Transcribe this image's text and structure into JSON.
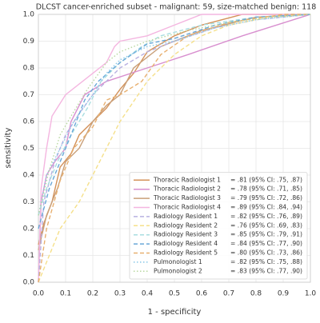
{
  "chart_data": {
    "type": "line",
    "title": "DLCST cancer-enriched subset - malignant: 59, size-matched benign: 118",
    "x_label": "1 - specificity",
    "y_label": "sensitivity",
    "xlim": [
      0,
      1
    ],
    "ylim": [
      0,
      1
    ],
    "xticks": [
      {
        "value": 0,
        "label": "0.0"
      },
      0.1,
      0.2,
      0.3,
      0.4,
      0.5,
      0.6,
      0.7,
      0.8,
      0.9,
      {
        "value": 1,
        "label": "1.0"
      }
    ],
    "yticks": [
      {
        "value": 0,
        "label": "0.0"
      },
      0.1,
      0.2,
      0.3,
      0.4,
      0.5,
      0.6,
      0.7,
      0.8,
      0.9,
      {
        "value": 1,
        "label": "1.0"
      }
    ],
    "grid": true,
    "legend": "lower right",
    "series": [
      {
        "name": "Thoracic Radiologist 1",
        "auc_label": "= .81 (95% CI: .75, .87)",
        "color": "#d4925a",
        "linestyle": "solid",
        "x": [
          0,
          0.02,
          0.05,
          0.08,
          0.12,
          0.15,
          0.2,
          0.25,
          0.3,
          0.35,
          0.4,
          0.5,
          0.6,
          0.75,
          1
        ],
        "values": [
          0.14,
          0.22,
          0.3,
          0.43,
          0.48,
          0.55,
          0.6,
          0.65,
          0.72,
          0.78,
          0.86,
          0.92,
          0.96,
          1,
          1
        ]
      },
      {
        "name": "Thoracic Radiologist 2",
        "auc_label": "= .78 (95% CI: .71, .85)",
        "color": "#d88fcf",
        "linestyle": "solid",
        "x": [
          0,
          0.01,
          0.03,
          0.06,
          0.1,
          0.12,
          0.17,
          0.25,
          0.4,
          0.55,
          0.75,
          1
        ],
        "values": [
          0,
          0.3,
          0.4,
          0.45,
          0.5,
          0.6,
          0.7,
          0.75,
          0.8,
          0.85,
          0.92,
          1
        ]
      },
      {
        "name": "Thoracic Radiologist 3",
        "auc_label": "= .79 (95% CI: .72, .86)",
        "color": "#c9a07a",
        "linestyle": "solid",
        "x": [
          0,
          0.03,
          0.07,
          0.1,
          0.15,
          0.2,
          0.25,
          0.3,
          0.35,
          0.45,
          0.6,
          0.8,
          1
        ],
        "values": [
          0.12,
          0.25,
          0.35,
          0.45,
          0.5,
          0.6,
          0.66,
          0.7,
          0.8,
          0.88,
          0.94,
          0.99,
          1
        ]
      },
      {
        "name": "Thoracic Radiologist 4",
        "auc_label": "= .89 (95% CI: .84, .94)",
        "color": "#f4b6e0",
        "linestyle": "solid",
        "x": [
          0,
          0.01,
          0.03,
          0.05,
          0.1,
          0.2,
          0.25,
          0.28,
          0.3,
          0.4,
          0.5,
          0.55,
          0.6,
          1
        ],
        "values": [
          0,
          0.35,
          0.5,
          0.62,
          0.7,
          0.78,
          0.82,
          0.88,
          0.9,
          0.92,
          0.96,
          0.98,
          1,
          1
        ]
      },
      {
        "name": "Radiology Resident 1",
        "auc_label": "= .82 (95% CI: .76, .89)",
        "color": "#b8b0e0",
        "linestyle": "dashed",
        "x": [
          0,
          0.02,
          0.06,
          0.1,
          0.15,
          0.2,
          0.3,
          0.4,
          0.5,
          0.65,
          0.8,
          1
        ],
        "values": [
          0,
          0.3,
          0.45,
          0.55,
          0.63,
          0.7,
          0.8,
          0.86,
          0.9,
          0.95,
          0.98,
          1
        ]
      },
      {
        "name": "Radiology Resident 2",
        "auc_label": "= .76 (95% CI: .69, .83)",
        "color": "#f5e08a",
        "linestyle": "dashed",
        "x": [
          0,
          0.08,
          0.15,
          0.25,
          0.3,
          0.4,
          0.5,
          0.6,
          0.7,
          0.85,
          1
        ],
        "values": [
          0,
          0.2,
          0.3,
          0.5,
          0.6,
          0.75,
          0.85,
          0.92,
          0.96,
          0.99,
          1
        ]
      },
      {
        "name": "Radiology Resident 3",
        "auc_label": "= .85 (95% CI: .79, .91)",
        "color": "#a8dde0",
        "linestyle": "dashed",
        "x": [
          0,
          0.03,
          0.07,
          0.12,
          0.18,
          0.23,
          0.3,
          0.38,
          0.45,
          0.6,
          0.8,
          1
        ],
        "values": [
          0.25,
          0.35,
          0.45,
          0.55,
          0.65,
          0.75,
          0.82,
          0.88,
          0.92,
          0.96,
          0.99,
          1
        ]
      },
      {
        "name": "Radiology Resident 4",
        "auc_label": "= .84 (95% CI: .77, .90)",
        "color": "#6aa8d8",
        "linestyle": "dashed",
        "x": [
          0,
          0.04,
          0.08,
          0.12,
          0.17,
          0.22,
          0.3,
          0.4,
          0.5,
          0.65,
          0.8,
          1
        ],
        "values": [
          0.2,
          0.35,
          0.45,
          0.55,
          0.68,
          0.75,
          0.82,
          0.89,
          0.91,
          0.96,
          0.99,
          1
        ]
      },
      {
        "name": "Radiology Resident 5",
        "auc_label": "= .80 (95% CI: .73, .86)",
        "color": "#e8b070",
        "linestyle": "dashed",
        "x": [
          0,
          0.03,
          0.08,
          0.13,
          0.2,
          0.25,
          0.3,
          0.38,
          0.45,
          0.55,
          0.7,
          0.9,
          1
        ],
        "values": [
          0,
          0.2,
          0.38,
          0.5,
          0.58,
          0.68,
          0.7,
          0.75,
          0.85,
          0.92,
          0.97,
          1,
          1
        ]
      },
      {
        "name": "Pulmonologist 1",
        "auc_label": "= .82 (95% CI: .75, .88)",
        "color": "#88c8e8",
        "linestyle": "dotted",
        "x": [
          0,
          0.03,
          0.08,
          0.13,
          0.2,
          0.25,
          0.3,
          0.4,
          0.5,
          0.65,
          0.8,
          1
        ],
        "values": [
          0.25,
          0.4,
          0.5,
          0.6,
          0.7,
          0.78,
          0.83,
          0.88,
          0.9,
          0.95,
          0.98,
          1
        ]
      },
      {
        "name": "Pulmonologist 2",
        "auc_label": "= .83 (95% CI: .77, .90)",
        "color": "#b8d8a0",
        "linestyle": "dotted",
        "x": [
          0,
          0.04,
          0.08,
          0.12,
          0.18,
          0.25,
          0.3,
          0.4,
          0.55,
          0.7,
          0.85,
          1
        ],
        "values": [
          0.25,
          0.42,
          0.55,
          0.62,
          0.72,
          0.82,
          0.86,
          0.9,
          0.94,
          0.97,
          0.99,
          1
        ]
      }
    ]
  }
}
